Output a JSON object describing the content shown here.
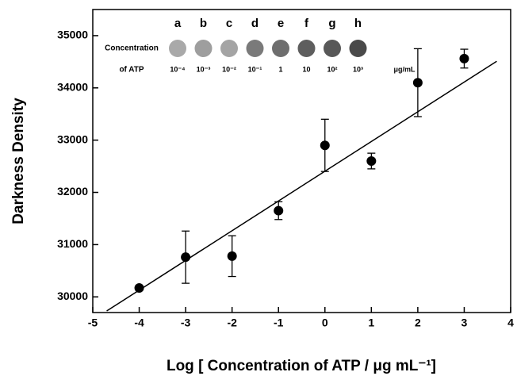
{
  "chart_data": {
    "type": "scatter",
    "x_label": "Log [ Concentration of ATP / μg mL⁻¹]",
    "y_label": "Darkness Density",
    "xlim": [
      -5,
      4
    ],
    "xticks": [
      -5,
      -4,
      -3,
      -2,
      -1,
      0,
      1,
      2,
      3,
      4
    ],
    "ylim": [
      29700,
      35500
    ],
    "yticks": [
      30000,
      31000,
      32000,
      33000,
      34000,
      35000
    ],
    "x": [
      -4,
      -3,
      -2,
      -1,
      0,
      1,
      2,
      3
    ],
    "values": [
      30170,
      30760,
      30780,
      31650,
      32900,
      32600,
      34100,
      34560
    ],
    "errors": [
      40,
      500,
      390,
      170,
      500,
      150,
      650,
      180
    ],
    "color": "#000000",
    "fit_line": {
      "x": [
        -4.7,
        3.7
      ],
      "y": [
        29730,
        34510
      ]
    },
    "inset": {
      "letters": [
        "a",
        "b",
        "c",
        "d",
        "e",
        "f",
        "g",
        "h"
      ],
      "label_lines": [
        "Concentration",
        "of ATP"
      ],
      "concentrations": [
        "10⁻⁴",
        "10⁻³",
        "10⁻²",
        "10⁻¹",
        "1",
        "10",
        "10²",
        "10³"
      ],
      "unit": "μg/mL"
    }
  }
}
